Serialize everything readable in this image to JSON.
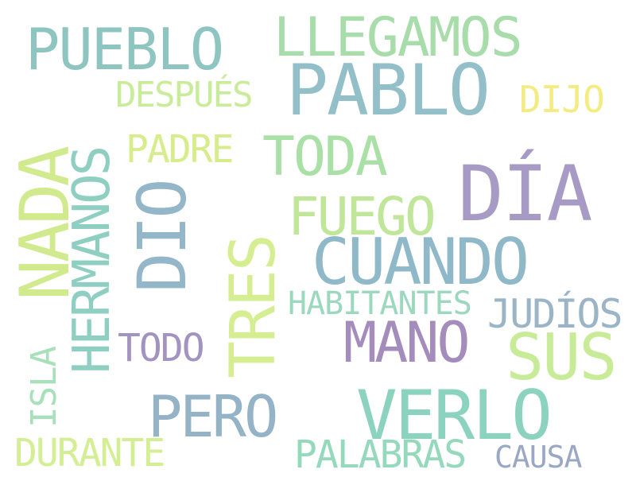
{
  "words": {
    "pueblo": {
      "text": "PUEBLO",
      "color": "#8fc5c0"
    },
    "llegamos": {
      "text": "LLEGAMOS",
      "color": "#a8dcaa"
    },
    "pablo": {
      "text": "PABLO",
      "color": "#93bfc9"
    },
    "despues": {
      "text": "DESPUÉS",
      "color": "#c9ec9a"
    },
    "dijo": {
      "text": "DIJO",
      "color": "#f4ec82"
    },
    "padre": {
      "text": "PADRE",
      "color": "#d7ed8c"
    },
    "toda": {
      "text": "TODA",
      "color": "#a9e0a5"
    },
    "dia": {
      "text": "DÍA",
      "color": "#a79ac4"
    },
    "nada": {
      "text": "NADA",
      "color": "#d2ea8e"
    },
    "hermanos": {
      "text": "HERMANOS",
      "color": "#8fcfc2"
    },
    "dio": {
      "text": "DIO",
      "color": "#93b6c9"
    },
    "fuego": {
      "text": "FUEGO",
      "color": "#c0e69a"
    },
    "cuando": {
      "text": "CUANDO",
      "color": "#8fb8c8"
    },
    "tres": {
      "text": "TRES",
      "color": "#d6ee92"
    },
    "habitantes": {
      "text": "HABITANTES",
      "color": "#9bd8bd"
    },
    "judios": {
      "text": "JUDÍOS",
      "color": "#9bb4c6"
    },
    "mano": {
      "text": "MANO",
      "color": "#a48cbc"
    },
    "sus": {
      "text": "SUS",
      "color": "#c8eb98"
    },
    "todo": {
      "text": "TODO",
      "color": "#a293c0"
    },
    "isla": {
      "text": "ISLA",
      "color": "#a8e0ba"
    },
    "pero": {
      "text": "PERO",
      "color": "#95b3c6"
    },
    "verlo": {
      "text": "VERLO",
      "color": "#8cd3bf"
    },
    "durante": {
      "text": "DURANTE",
      "color": "#d4ee93"
    },
    "palabras": {
      "text": "PALABRAS",
      "color": "#95d9bc"
    },
    "causa": {
      "text": "CAUSA",
      "color": "#9aa8c4"
    }
  }
}
